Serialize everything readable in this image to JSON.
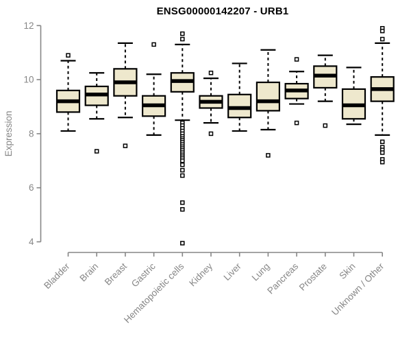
{
  "chart_data": {
    "type": "boxplot",
    "title": "ENSG00000142207 - URB1",
    "ylabel": "Expression",
    "xlabel": "",
    "yticks": [
      4,
      6,
      8,
      10,
      12
    ],
    "ylim": [
      3.8,
      12.2
    ],
    "grid": false,
    "legend": false,
    "colors": {
      "box_fill": "#EEE8CD",
      "box_stroke": "#000000",
      "median": "#000000",
      "whisker": "#000000",
      "outlier_stroke": "#000000",
      "outlier_fill": "#FFFFFF",
      "axis": "#868686",
      "tick_label": "#868686",
      "title": "#000000",
      "background": "#FFFFFF"
    },
    "categories": [
      "Bladder",
      "Brain",
      "Breast",
      "Gastric",
      "Hematopoietic cells",
      "Kidney",
      "Liver",
      "Lung",
      "Pancreas",
      "Prostate",
      "Skin",
      "Unknown / Other"
    ],
    "series": [
      {
        "label": "Bladder",
        "whisker_low": 8.1,
        "q1": 8.8,
        "median": 9.2,
        "q3": 9.6,
        "whisker_high": 10.7,
        "outliers": [
          10.9
        ]
      },
      {
        "label": "Brain",
        "whisker_low": 8.55,
        "q1": 9.05,
        "median": 9.45,
        "q3": 9.75,
        "whisker_high": 10.25,
        "outliers": [
          7.35
        ]
      },
      {
        "label": "Breast",
        "whisker_low": 8.6,
        "q1": 9.4,
        "median": 9.9,
        "q3": 10.4,
        "whisker_high": 11.35,
        "outliers": [
          7.55
        ]
      },
      {
        "label": "Gastric",
        "whisker_low": 7.95,
        "q1": 8.65,
        "median": 9.05,
        "q3": 9.4,
        "whisker_high": 10.2,
        "outliers": [
          11.3
        ]
      },
      {
        "label": "Hematopoietic cells",
        "whisker_low": 8.5,
        "q1": 9.55,
        "median": 9.95,
        "q3": 10.25,
        "whisker_high": 11.3,
        "outliers": [
          11.7,
          11.5,
          8.4,
          8.3,
          8.2,
          8.1,
          8.0,
          7.9,
          7.82,
          7.75,
          7.68,
          7.6,
          7.52,
          7.45,
          7.38,
          7.3,
          7.22,
          7.15,
          7.08,
          7.0,
          6.85,
          6.65,
          6.45,
          5.45,
          5.2,
          3.95
        ]
      },
      {
        "label": "Kidney",
        "whisker_low": 8.4,
        "q1": 8.95,
        "median": 9.18,
        "q3": 9.4,
        "whisker_high": 10.05,
        "outliers": [
          10.25,
          8.0
        ]
      },
      {
        "label": "Liver",
        "whisker_low": 8.1,
        "q1": 8.6,
        "median": 8.95,
        "q3": 9.45,
        "whisker_high": 10.6,
        "outliers": []
      },
      {
        "label": "Lung",
        "whisker_low": 8.15,
        "q1": 8.85,
        "median": 9.2,
        "q3": 9.9,
        "whisker_high": 11.1,
        "outliers": [
          7.2
        ]
      },
      {
        "label": "Pancreas",
        "whisker_low": 9.1,
        "q1": 9.3,
        "median": 9.6,
        "q3": 9.85,
        "whisker_high": 10.3,
        "outliers": [
          10.75,
          8.4
        ]
      },
      {
        "label": "Prostate",
        "whisker_low": 9.2,
        "q1": 9.7,
        "median": 10.15,
        "q3": 10.5,
        "whisker_high": 10.9,
        "outliers": [
          8.3
        ]
      },
      {
        "label": "Skin",
        "whisker_low": 8.35,
        "q1": 8.55,
        "median": 9.05,
        "q3": 9.65,
        "whisker_high": 10.45,
        "outliers": []
      },
      {
        "label": "Unknown / Other",
        "whisker_low": 7.95,
        "q1": 9.2,
        "median": 9.65,
        "q3": 10.1,
        "whisker_high": 11.35,
        "outliers": [
          11.9,
          11.8,
          11.5,
          7.7,
          7.5,
          7.4,
          7.3,
          7.05,
          6.95
        ]
      }
    ]
  }
}
